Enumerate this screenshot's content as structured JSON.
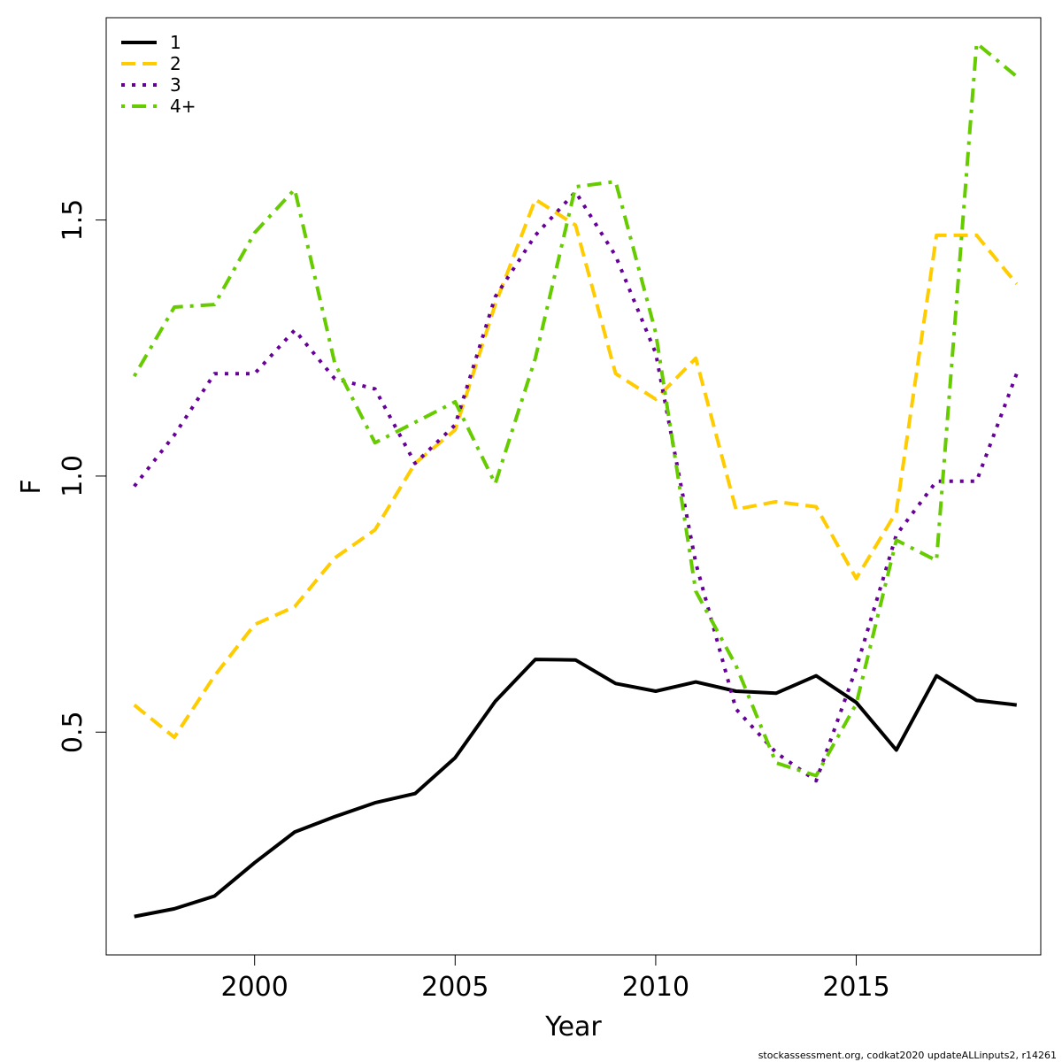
{
  "chart_data": {
    "type": "line",
    "xlabel": "Year",
    "ylabel": "F",
    "xlim": [
      1996.3,
      2019.6
    ],
    "ylim": [
      0.065,
      1.895
    ],
    "xticks": [
      2000,
      2005,
      2010,
      2015
    ],
    "yticks": [
      0.5,
      1.0,
      1.5
    ],
    "ytick_labels": [
      "0.5",
      "1.0",
      "1.5"
    ],
    "grid": false,
    "legend_position": "top-left",
    "x": [
      1997,
      1998,
      1999,
      2000,
      2001,
      2002,
      2003,
      2004,
      2005,
      2006,
      2007,
      2008,
      2009,
      2010,
      2011,
      2012,
      2013,
      2014,
      2015,
      2016,
      2017,
      2018,
      2019
    ],
    "series": [
      {
        "name": "1",
        "color": "#000000",
        "dash": "solid",
        "values": [
          0.14,
          0.155,
          0.18,
          0.245,
          0.305,
          0.335,
          0.362,
          0.38,
          0.45,
          0.56,
          0.642,
          0.641,
          0.595,
          0.58,
          0.598,
          0.58,
          0.576,
          0.61,
          0.558,
          0.465,
          0.61,
          0.562,
          0.553
        ]
      },
      {
        "name": "2",
        "color": "#ffcc00",
        "dash": "dashed",
        "values": [
          0.553,
          0.49,
          0.61,
          0.71,
          0.745,
          0.84,
          0.895,
          1.025,
          1.09,
          1.335,
          1.54,
          1.49,
          1.2,
          1.15,
          1.23,
          0.935,
          0.95,
          0.94,
          0.8,
          0.93,
          1.47,
          1.47,
          1.375
        ]
      },
      {
        "name": "3",
        "color": "#660099",
        "dash": "dotted",
        "values": [
          0.98,
          1.08,
          1.2,
          1.2,
          1.285,
          1.19,
          1.17,
          1.025,
          1.1,
          1.35,
          1.47,
          1.555,
          1.43,
          1.24,
          0.83,
          0.545,
          0.46,
          0.405,
          0.625,
          0.885,
          0.99,
          0.99,
          1.2
        ]
      },
      {
        "name": "4+",
        "color": "#66cc00",
        "dash": "dotdash",
        "values": [
          1.195,
          1.33,
          1.335,
          1.475,
          1.56,
          1.22,
          1.065,
          1.105,
          1.145,
          0.985,
          1.23,
          1.565,
          1.575,
          1.28,
          0.775,
          0.63,
          0.44,
          0.415,
          0.555,
          0.875,
          0.835,
          1.845,
          1.78
        ]
      }
    ]
  },
  "footer": "stockassessment.org, codkat2020 updateALLinputs2, r14261"
}
